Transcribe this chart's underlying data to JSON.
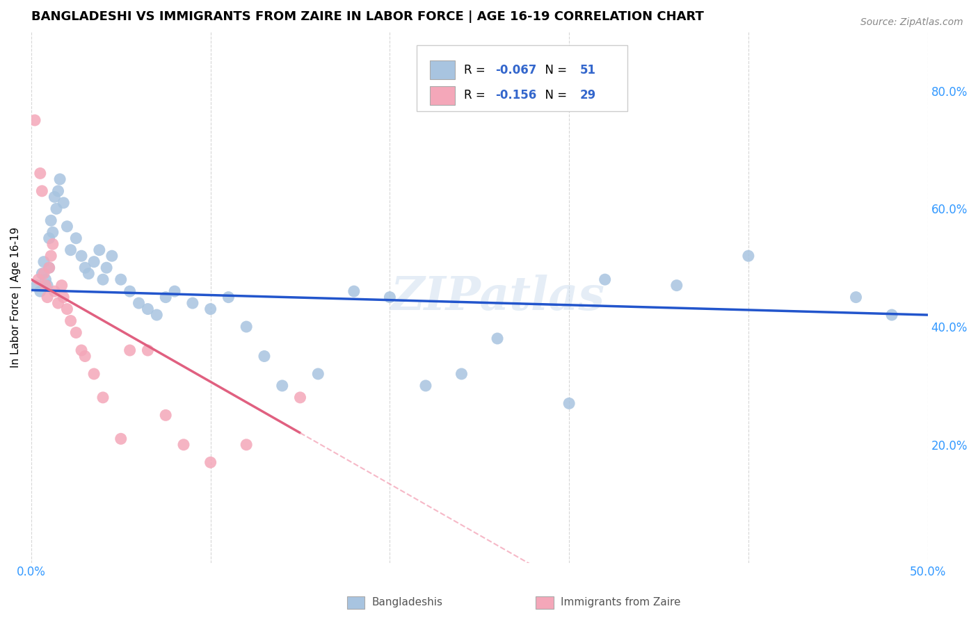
{
  "title": "BANGLADESHI VS IMMIGRANTS FROM ZAIRE IN LABOR FORCE | AGE 16-19 CORRELATION CHART",
  "source": "Source: ZipAtlas.com",
  "ylabel": "In Labor Force | Age 16-19",
  "xlim": [
    0.0,
    0.5
  ],
  "ylim": [
    0.0,
    0.9
  ],
  "xtick_vals": [
    0.0,
    0.1,
    0.2,
    0.3,
    0.4,
    0.5
  ],
  "xticklabels": [
    "0.0%",
    "",
    "",
    "",
    "",
    "50.0%"
  ],
  "yticks_right": [
    0.2,
    0.4,
    0.6,
    0.8
  ],
  "ytick_right_labels": [
    "20.0%",
    "40.0%",
    "60.0%",
    "80.0%"
  ],
  "blue_R": -0.067,
  "blue_N": 51,
  "pink_R": -0.156,
  "pink_N": 29,
  "blue_color": "#a8c4e0",
  "pink_color": "#f4a7b9",
  "blue_line_color": "#2255cc",
  "pink_line_color": "#e06080",
  "pink_dash_color": "#f4a7b9",
  "legend_text_color": "#3366cc",
  "axis_color": "#3399ff",
  "watermark": "ZIPatlas",
  "blue_scatter_x": [
    0.003,
    0.005,
    0.006,
    0.007,
    0.008,
    0.009,
    0.01,
    0.01,
    0.011,
    0.012,
    0.013,
    0.014,
    0.015,
    0.016,
    0.018,
    0.02,
    0.022,
    0.025,
    0.028,
    0.03,
    0.032,
    0.035,
    0.038,
    0.04,
    0.042,
    0.045,
    0.05,
    0.055,
    0.06,
    0.065,
    0.07,
    0.075,
    0.08,
    0.09,
    0.1,
    0.11,
    0.12,
    0.13,
    0.14,
    0.16,
    0.18,
    0.2,
    0.22,
    0.24,
    0.26,
    0.3,
    0.32,
    0.36,
    0.4,
    0.46,
    0.48
  ],
  "blue_scatter_y": [
    0.47,
    0.46,
    0.49,
    0.51,
    0.48,
    0.47,
    0.5,
    0.55,
    0.58,
    0.56,
    0.62,
    0.6,
    0.63,
    0.65,
    0.61,
    0.57,
    0.53,
    0.55,
    0.52,
    0.5,
    0.49,
    0.51,
    0.53,
    0.48,
    0.5,
    0.52,
    0.48,
    0.46,
    0.44,
    0.43,
    0.42,
    0.45,
    0.46,
    0.44,
    0.43,
    0.45,
    0.4,
    0.35,
    0.3,
    0.32,
    0.46,
    0.45,
    0.3,
    0.32,
    0.38,
    0.27,
    0.48,
    0.47,
    0.52,
    0.45,
    0.42
  ],
  "pink_scatter_x": [
    0.002,
    0.004,
    0.005,
    0.006,
    0.007,
    0.008,
    0.009,
    0.01,
    0.011,
    0.012,
    0.013,
    0.015,
    0.017,
    0.018,
    0.02,
    0.022,
    0.025,
    0.028,
    0.03,
    0.035,
    0.04,
    0.05,
    0.055,
    0.065,
    0.075,
    0.085,
    0.1,
    0.12,
    0.15
  ],
  "pink_scatter_y": [
    0.75,
    0.48,
    0.66,
    0.63,
    0.49,
    0.47,
    0.45,
    0.5,
    0.52,
    0.54,
    0.46,
    0.44,
    0.47,
    0.45,
    0.43,
    0.41,
    0.39,
    0.36,
    0.35,
    0.32,
    0.28,
    0.21,
    0.36,
    0.36,
    0.25,
    0.2,
    0.17,
    0.2,
    0.28
  ],
  "blue_line_y0": 0.462,
  "blue_line_y1": 0.42,
  "pink_line_x0": 0.0,
  "pink_line_y0": 0.48,
  "pink_line_x1": 0.15,
  "pink_line_y1": 0.22
}
